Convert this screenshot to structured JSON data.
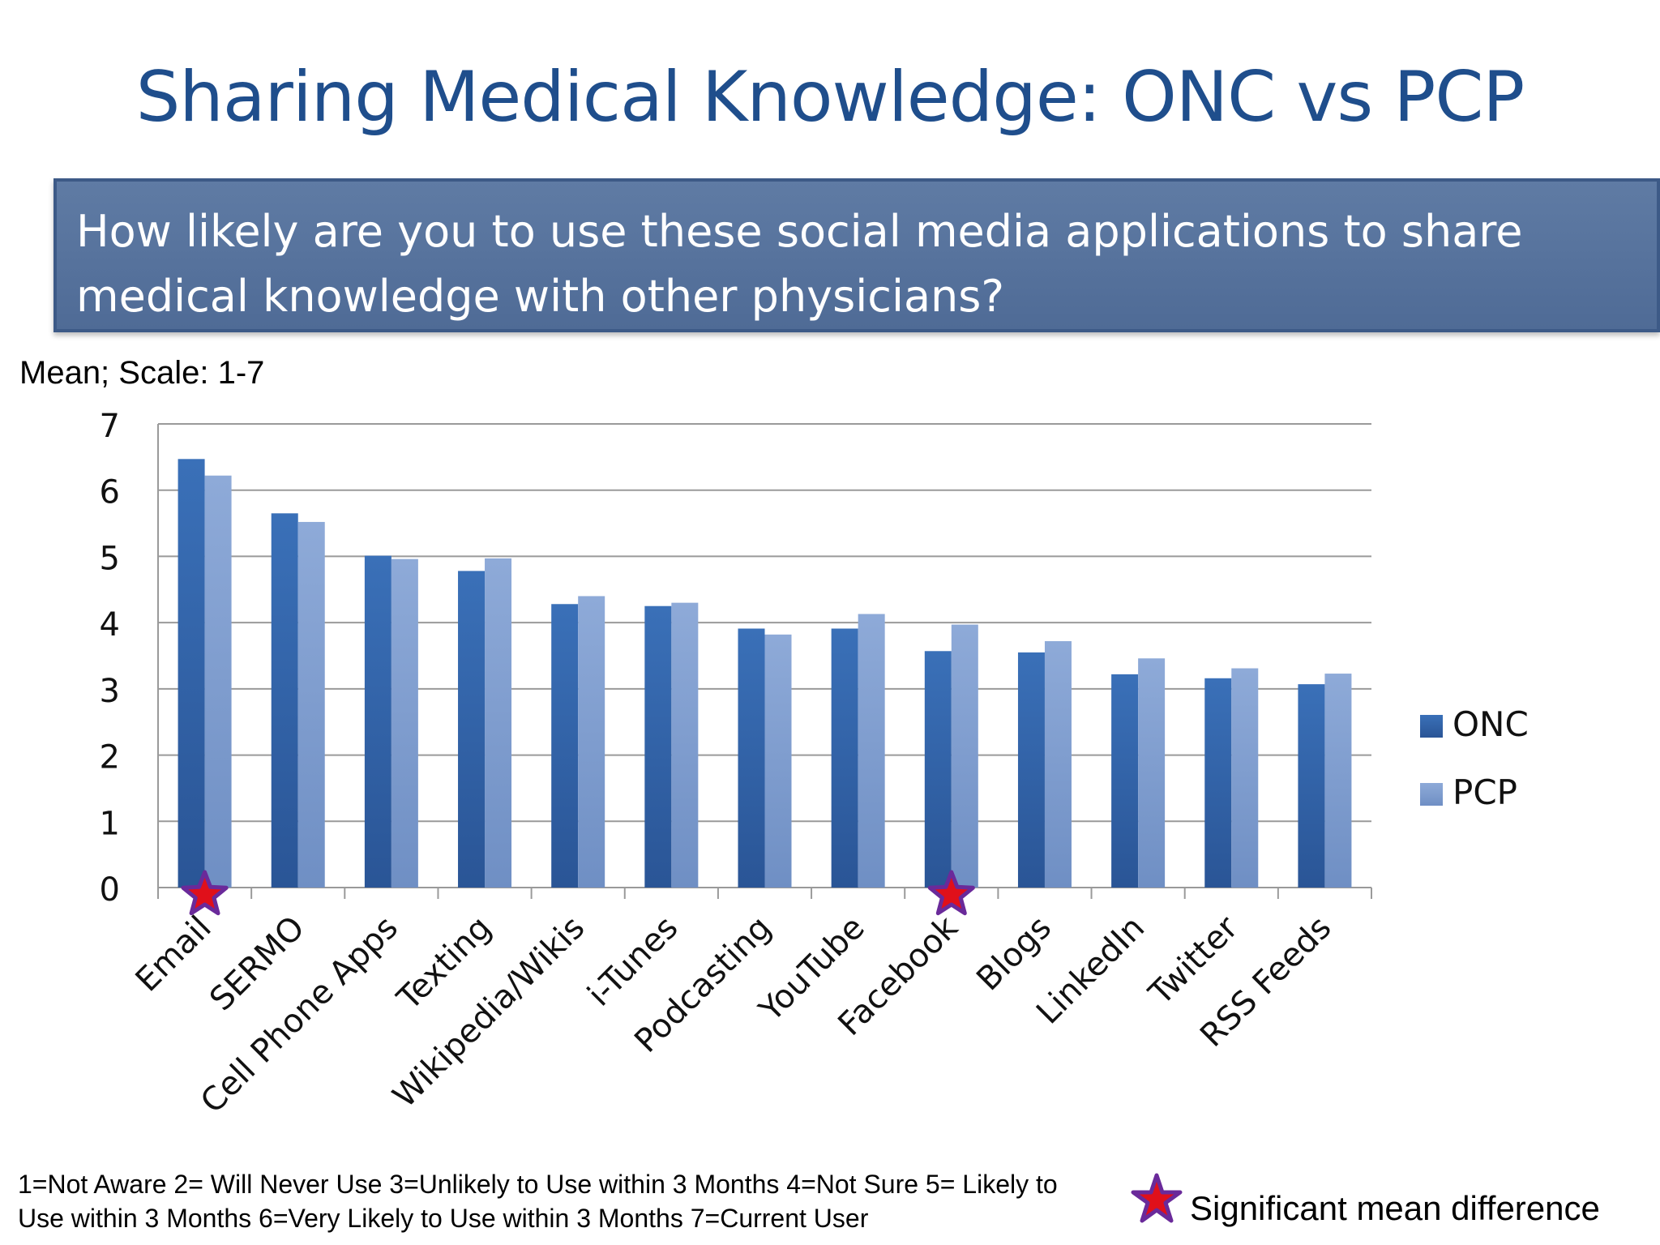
{
  "title": "Sharing Medical Knowledge: ONC vs PCP",
  "question": "How likely are you to use these social media applications to share medical knowledge with other physicians?",
  "scale_label": "Mean; Scale: 1-7",
  "footnote": "1=Not Aware  2= Will Never Use  3=Unlikely to Use within 3 Months  4=Not Sure  5= Likely to Use within 3 Months  6=Very Likely to Use within 3 Months  7=Current User",
  "significance_legend": "Significant mean difference",
  "colors": {
    "onc": "#2e5fa3",
    "pcp": "#7f9fd0",
    "star_fill": "#e0101a",
    "star_stroke": "#6a2a9a",
    "grid": "#9a9a9a"
  },
  "chart_data": {
    "type": "bar",
    "categories": [
      "Email",
      "SERMO",
      "Cell Phone Apps",
      "Texting",
      "Wikipedia/Wikis",
      "i-Tunes",
      "Podcasting",
      "YouTube",
      "Facebook",
      "Blogs",
      "LinkedIn",
      "Twitter",
      "RSS Feeds"
    ],
    "series": [
      {
        "name": "ONC",
        "values": [
          6.47,
          5.65,
          5.01,
          4.78,
          4.28,
          4.25,
          3.91,
          3.91,
          3.57,
          3.55,
          3.22,
          3.16,
          3.07
        ]
      },
      {
        "name": "PCP",
        "values": [
          6.22,
          5.52,
          4.96,
          4.97,
          4.4,
          4.3,
          3.82,
          4.13,
          3.97,
          3.72,
          3.46,
          3.31,
          3.23
        ]
      }
    ],
    "significant": [
      "Email",
      "Facebook"
    ],
    "ylim": [
      0,
      7
    ],
    "yticks": [
      0,
      1,
      2,
      3,
      4,
      5,
      6,
      7
    ],
    "grid": true,
    "legend_position": "right"
  }
}
